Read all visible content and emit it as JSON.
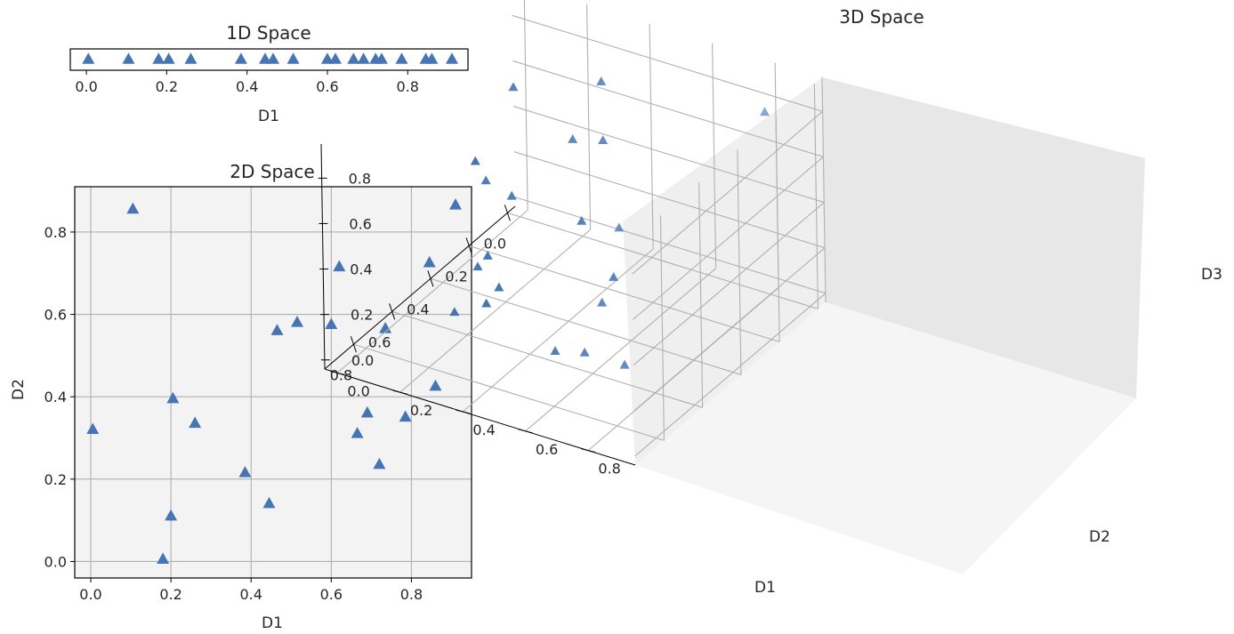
{
  "colors": {
    "marker": "#4575b4",
    "panel_bg": "#f3f3f3",
    "grid": "#b0b0b0"
  },
  "chart_data": [
    {
      "type": "scatter",
      "title": "1D Space",
      "xlabel": "D1",
      "xticks": [
        "0.0",
        "0.2",
        "0.4",
        "0.6",
        "0.8"
      ],
      "xlim": [
        -0.04,
        0.95
      ],
      "marker": "triangle",
      "x": [
        0.005,
        0.105,
        0.18,
        0.205,
        0.26,
        0.385,
        0.445,
        0.465,
        0.515,
        0.6,
        0.62,
        0.665,
        0.69,
        0.72,
        0.735,
        0.785,
        0.845,
        0.86,
        0.91
      ]
    },
    {
      "type": "scatter",
      "title": "2D Space",
      "xlabel": "D1",
      "ylabel": "D2",
      "xticks": [
        "0.0",
        "0.2",
        "0.4",
        "0.6",
        "0.8"
      ],
      "yticks": [
        "0.0",
        "0.2",
        "0.4",
        "0.6",
        "0.8"
      ],
      "xlim": [
        -0.04,
        0.95
      ],
      "ylim": [
        -0.04,
        0.91
      ],
      "grid": true,
      "marker": "triangle",
      "points": [
        [
          0.005,
          0.32
        ],
        [
          0.105,
          0.855
        ],
        [
          0.18,
          0.005
        ],
        [
          0.2,
          0.11
        ],
        [
          0.205,
          0.395
        ],
        [
          0.26,
          0.335
        ],
        [
          0.385,
          0.215
        ],
        [
          0.445,
          0.14
        ],
        [
          0.465,
          0.56
        ],
        [
          0.515,
          0.58
        ],
        [
          0.6,
          0.575
        ],
        [
          0.62,
          0.715
        ],
        [
          0.665,
          0.31
        ],
        [
          0.69,
          0.36
        ],
        [
          0.72,
          0.235
        ],
        [
          0.735,
          0.565
        ],
        [
          0.785,
          0.35
        ],
        [
          0.845,
          0.725
        ],
        [
          0.86,
          0.425
        ],
        [
          0.91,
          0.865
        ]
      ]
    },
    {
      "type": "scatter3d",
      "title": "3D Space",
      "xlabel": "D1",
      "ylabel": "D2",
      "zlabel": "D3",
      "xticks": [
        "0.0",
        "0.2",
        "0.4",
        "0.6",
        "0.8"
      ],
      "yticks": [
        "0.0",
        "0.2",
        "0.4",
        "0.6",
        "0.8"
      ],
      "zticks": [
        "0.0",
        "0.2",
        "0.4",
        "0.6",
        "0.8"
      ],
      "grid": true,
      "marker": "triangle",
      "points": [
        [
          0.005,
          0.32,
          0.05
        ],
        [
          0.105,
          0.855,
          0.86
        ],
        [
          0.18,
          0.005,
          0.25
        ],
        [
          0.2,
          0.11,
          0.72
        ],
        [
          0.205,
          0.395,
          0.87
        ],
        [
          0.26,
          0.335,
          0.63
        ],
        [
          0.385,
          0.215,
          0.42
        ],
        [
          0.445,
          0.14,
          0.12
        ],
        [
          0.465,
          0.56,
          0.87
        ],
        [
          0.515,
          0.58,
          0.2
        ],
        [
          0.6,
          0.575,
          0.04
        ],
        [
          0.62,
          0.715,
          0.06
        ],
        [
          0.665,
          0.31,
          0.4
        ],
        [
          0.69,
          0.36,
          0.3
        ],
        [
          0.72,
          0.235,
          0.16
        ],
        [
          0.735,
          0.565,
          0.14
        ],
        [
          0.785,
          0.35,
          0.92
        ],
        [
          0.845,
          0.725,
          0.86
        ],
        [
          0.86,
          0.425,
          0.38
        ],
        [
          0.91,
          0.865,
          0.72
        ]
      ]
    }
  ]
}
